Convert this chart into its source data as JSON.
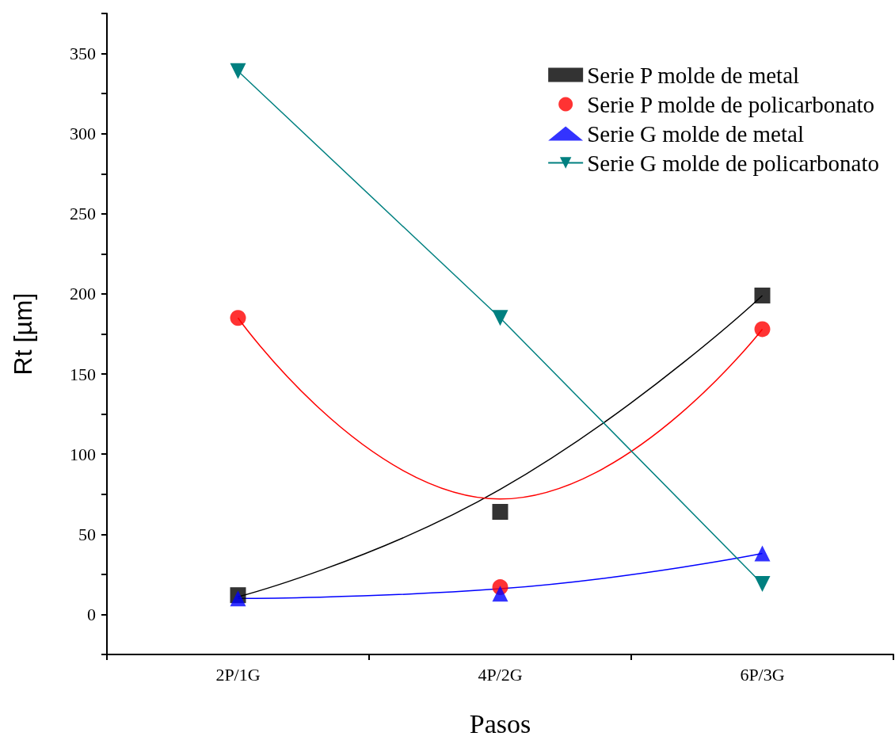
{
  "chart_data": {
    "type": "scatter",
    "xlabel": "Pasos",
    "ylabel": "Rt [µm]",
    "categories": [
      "2P/1G",
      "4P/2G",
      "6P/3G"
    ],
    "ylim": [
      -25,
      375
    ],
    "yticks": [
      {
        "value": -25,
        "label": null
      },
      0,
      {
        "value": 25,
        "label": null
      },
      50,
      {
        "value": 75,
        "label": null
      },
      100,
      {
        "value": 125,
        "label": null
      },
      150,
      {
        "value": 175,
        "label": null
      },
      200,
      {
        "value": 225,
        "label": null
      },
      250,
      {
        "value": 275,
        "label": null
      },
      300,
      {
        "value": 325,
        "label": null
      },
      350,
      {
        "value": 375,
        "label": null
      }
    ],
    "grid": false,
    "legend": "top right",
    "series": [
      {
        "name": "Serie P molde de metal",
        "color": "#000000",
        "marker": "square",
        "values": [
          12,
          64,
          199
        ]
      },
      {
        "name": "Serie P molde de policarbonato",
        "color": "#ff0000",
        "marker": "circle",
        "values": [
          185,
          17,
          178
        ]
      },
      {
        "name": "Serie G molde de metal",
        "color": "#0000ff",
        "marker": "triangle",
        "values": [
          10,
          13,
          38
        ]
      },
      {
        "name": "Serie G molde de policarbonato",
        "type": "line",
        "color": "#008080",
        "marker": "triangle-down",
        "values": [
          339,
          185,
          19
        ]
      },
      {
        "type": "line",
        "color": "#000000",
        "marker": "none",
        "values": [
          11,
          78,
          199
        ]
      },
      {
        "type": "line",
        "color": "#ff0000",
        "marker": "none",
        "values": [
          185,
          72,
          178
        ]
      },
      {
        "type": "line",
        "color": "#0000ff",
        "marker": "none",
        "values": [
          10,
          16,
          38
        ]
      }
    ]
  }
}
